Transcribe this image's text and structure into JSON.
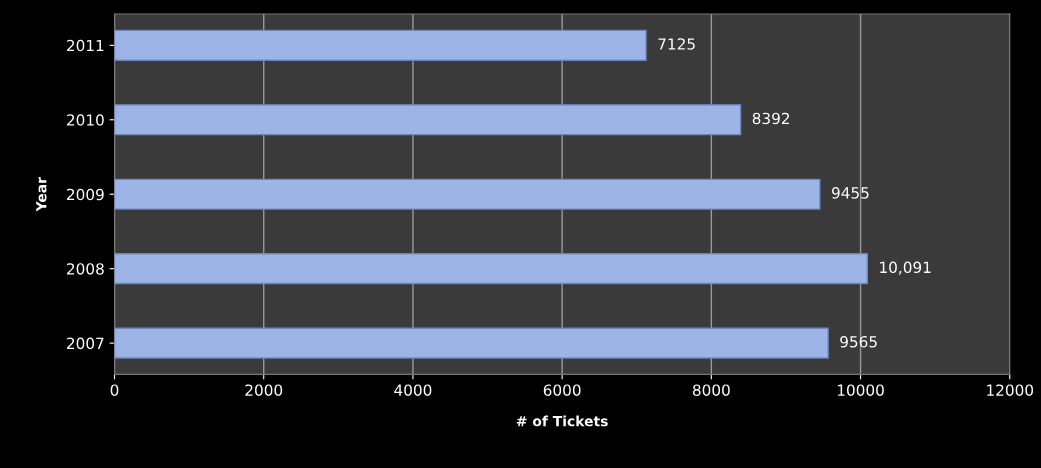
{
  "chart_data": {
    "type": "bar",
    "orientation": "horizontal",
    "categories": [
      "2011",
      "2010",
      "2009",
      "2008",
      "2007"
    ],
    "values": [
      7125,
      8392,
      9455,
      10091,
      9565
    ],
    "value_labels": [
      "7125",
      "8392",
      "9455",
      "10,091",
      "9565"
    ],
    "color": "#9db4e6",
    "xlabel": "# of Tickets",
    "ylabel": "Year",
    "xlim": [
      0,
      12000
    ],
    "xticks": [
      0,
      2000,
      4000,
      6000,
      8000,
      10000,
      12000
    ],
    "grid": "x",
    "legend": false
  }
}
